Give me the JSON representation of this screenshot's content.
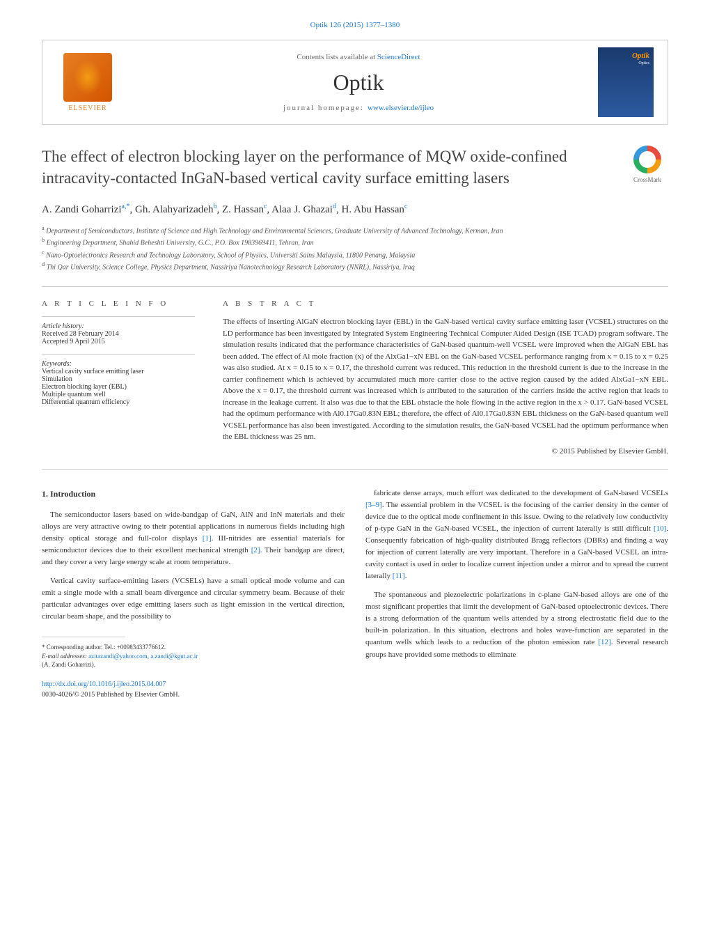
{
  "top_citation": "Optik 126 (2015) 1377–1380",
  "header": {
    "publisher_name": "ELSEVIER",
    "contents_text": "Contents lists available at ",
    "contents_link": "ScienceDirect",
    "journal_name": "Optik",
    "homepage_text": "journal homepage: ",
    "homepage_link": "www.elsevier.de/ijleo",
    "cover_title": "Optik",
    "cover_sub": "Optics"
  },
  "crossmark_label": "CrossMark",
  "title": "The effect of electron blocking layer on the performance of MQW oxide-confined intracavity-contacted InGaN-based vertical cavity surface emitting lasers",
  "authors_html": "A. Zandi Goharrizi<sup>a,*</sup>, Gh. Alahyarizadeh<sup>b</sup>, Z. Hassan<sup>c</sup>, Alaa J. Ghazai<sup>d</sup>, H. Abu Hassan<sup>c</sup>",
  "affiliations": [
    "a Department of Semiconductors, Institute of Science and High Technology and Environmental Sciences, Graduate University of Advanced Technology, Kerman, Iran",
    "b Engineering Department, Shahid Beheshti University, G.C., P.O. Box 1983969411, Tehran, Iran",
    "c Nano-Optoelectronics Research and Technology Laboratory, School of Physics, Universiti Sains Malaysia, 11800 Penang, Malaysia",
    "d Thi Qar University, Science College, Physics Department, Nassiriya Nanotechnology Research Laboratory (NNRL), Nassiriya, Iraq"
  ],
  "article_info": {
    "label": "A R T I C L E   I N F O",
    "history_heading": "Article history:",
    "history": [
      "Received 28 February 2014",
      "Accepted 9 April 2015"
    ],
    "keywords_heading": "Keywords:",
    "keywords": [
      "Vertical cavity surface emitting laser",
      "Simulation",
      "Electron blocking layer (EBL)",
      "Multiple quantum well",
      "Differential quantum efficiency"
    ]
  },
  "abstract": {
    "label": "A B S T R A C T",
    "text": "The effects of inserting AlGaN electron blocking layer (EBL) in the GaN-based vertical cavity surface emitting laser (VCSEL) structures on the LD performance has been investigated by Integrated System Engineering Technical Computer Aided Design (ISE TCAD) program software. The simulation results indicated that the performance characteristics of GaN-based quantum-well VCSEL were improved when the AlGaN EBL has been added. The effect of Al mole fraction (x) of the AlxGa1−xN EBL on the GaN-based VCSEL performance ranging from x = 0.15 to x = 0.25 was also studied. At x = 0.15 to x = 0.17, the threshold current was reduced. This reduction in the threshold current is due to the increase in the carrier confinement which is achieved by accumulated much more carrier close to the active region caused by the added AlxGa1−xN EBL. Above the x = 0.17, the threshold current was increased which is attributed to the saturation of the carriers inside the active region that leads to increase in the leakage current. It also was due to that the EBL obstacle the hole flowing in the active region in the x > 0.17. GaN-based VCSEL had the optimum performance with Al0.17Ga0.83N EBL; therefore, the effect of Al0.17Ga0.83N EBL thickness on the GaN-based quantum well VCSEL performance has also been investigated. According to the simulation results, the GaN-based VCSEL had the optimum performance when the EBL thickness was 25 nm.",
    "copyright": "© 2015 Published by Elsevier GmbH."
  },
  "body": {
    "left": {
      "heading": "1. Introduction",
      "p1": "The semiconductor lasers based on wide-bandgap of GaN, AlN and InN materials and their alloys are very attractive owing to their potential applications in numerous fields including high density optical storage and full-color displays [1]. III-nitrides are essential materials for semiconductor devices due to their excellent mechanical strength [2]. Their bandgap are direct, and they cover a very large energy scale at room temperature.",
      "p2": "Vertical cavity surface-emitting lasers (VCSELs) have a small optical mode volume and can emit a single mode with a small beam divergence and circular symmetry beam. Because of their particular advantages over edge emitting lasers such as light emission in the vertical direction, circular beam shape, and the possibility to"
    },
    "right": {
      "p1": "fabricate dense arrays, much effort was dedicated to the development of GaN-based VCSELs [3–9]. The essential problem in the VCSEL is the focusing of the carrier density in the center of device due to the optical mode confinement in this issue. Owing to the relatively low conductivity of p-type GaN in the GaN-based VCSEL, the injection of current laterally is still difficult [10]. Consequently fabrication of high-quality distributed Bragg reflectors (DBRs) and finding a way for injection of current laterally are very important. Therefore in a GaN-based VCSEL an intra-cavity contact is used in order to localize current injection under a mirror and to spread the current laterally [11].",
      "p2": "The spontaneous and piezoelectric polarizations in c-plane GaN-based alloys are one of the most significant properties that limit the development of GaN-based optoelectronic devices. There is a strong deformation of the quantum wells attended by a strong electrostatic field due to the built-in polarization. In this situation, electrons and holes wave-function are separated in the quantum wells which leads to a reduction of the photon emission rate [12]. Several research groups have provided some methods to eliminate"
    }
  },
  "footnote": {
    "corr": "* Corresponding author. Tel.: +00983433776612.",
    "email_label": "E-mail addresses: ",
    "email1": "azitazandi@yahoo.com",
    "email2": "a.zandi@kgut.ac.ir",
    "author": "(A. Zandi Goharrizi)."
  },
  "doi": {
    "url": "http://dx.doi.org/10.1016/j.ijleo.2015.04.007",
    "issn": "0030-4026/© 2015 Published by Elsevier GmbH."
  },
  "colors": {
    "link": "#1976d2",
    "text": "#333333",
    "border": "#cccccc",
    "elsevier": "#e67e22"
  },
  "fonts": {
    "body_size": 11,
    "title_size": 23,
    "journal_size": 32,
    "small_size": 10,
    "footnote_size": 9
  }
}
